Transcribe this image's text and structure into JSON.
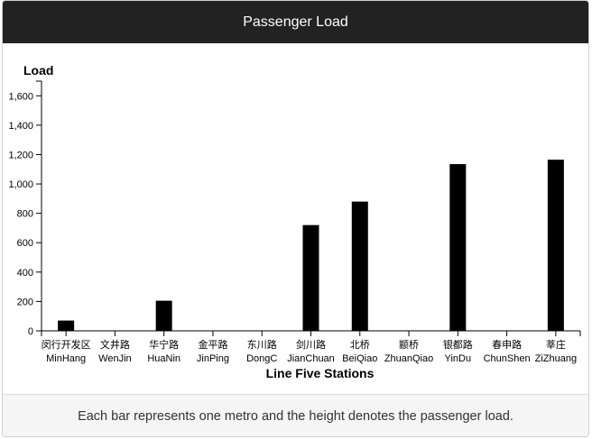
{
  "panel": {
    "title": "Passenger Load",
    "caption": "Each bar represents one metro and the height denotes the passenger load."
  },
  "chart_data": {
    "type": "bar",
    "title": "Passenger Load",
    "ylabel": "Load",
    "xlabel": "Line Five Stations",
    "ylim": [
      0,
      1700
    ],
    "yticks": [
      0,
      200,
      400,
      600,
      800,
      1000,
      1200,
      1400,
      1600
    ],
    "ytick_labels": [
      "0",
      "200",
      "400",
      "600",
      "800",
      "1,000",
      "1,200",
      "1,400",
      "1,600"
    ],
    "categories": [
      {
        "zh": "闵行开发区",
        "en": "MinHang"
      },
      {
        "zh": "文井路",
        "en": "WenJin"
      },
      {
        "zh": "华宁路",
        "en": "HuaNin"
      },
      {
        "zh": "金平路",
        "en": "JinPing"
      },
      {
        "zh": "东川路",
        "en": "DongC"
      },
      {
        "zh": "剑川路",
        "en": "JianChuan"
      },
      {
        "zh": "北桥",
        "en": "BeiQiao"
      },
      {
        "zh": "颛桥",
        "en": "ZhuanQiao"
      },
      {
        "zh": "银都路",
        "en": "YinDu"
      },
      {
        "zh": "春申路",
        "en": "ChunShen"
      },
      {
        "zh": "莘庄",
        "en": "ZiZhuang"
      }
    ],
    "values": [
      70,
      0,
      205,
      0,
      0,
      720,
      880,
      0,
      1135,
      0,
      1165
    ],
    "bar_color": "#000000",
    "grid": false
  }
}
